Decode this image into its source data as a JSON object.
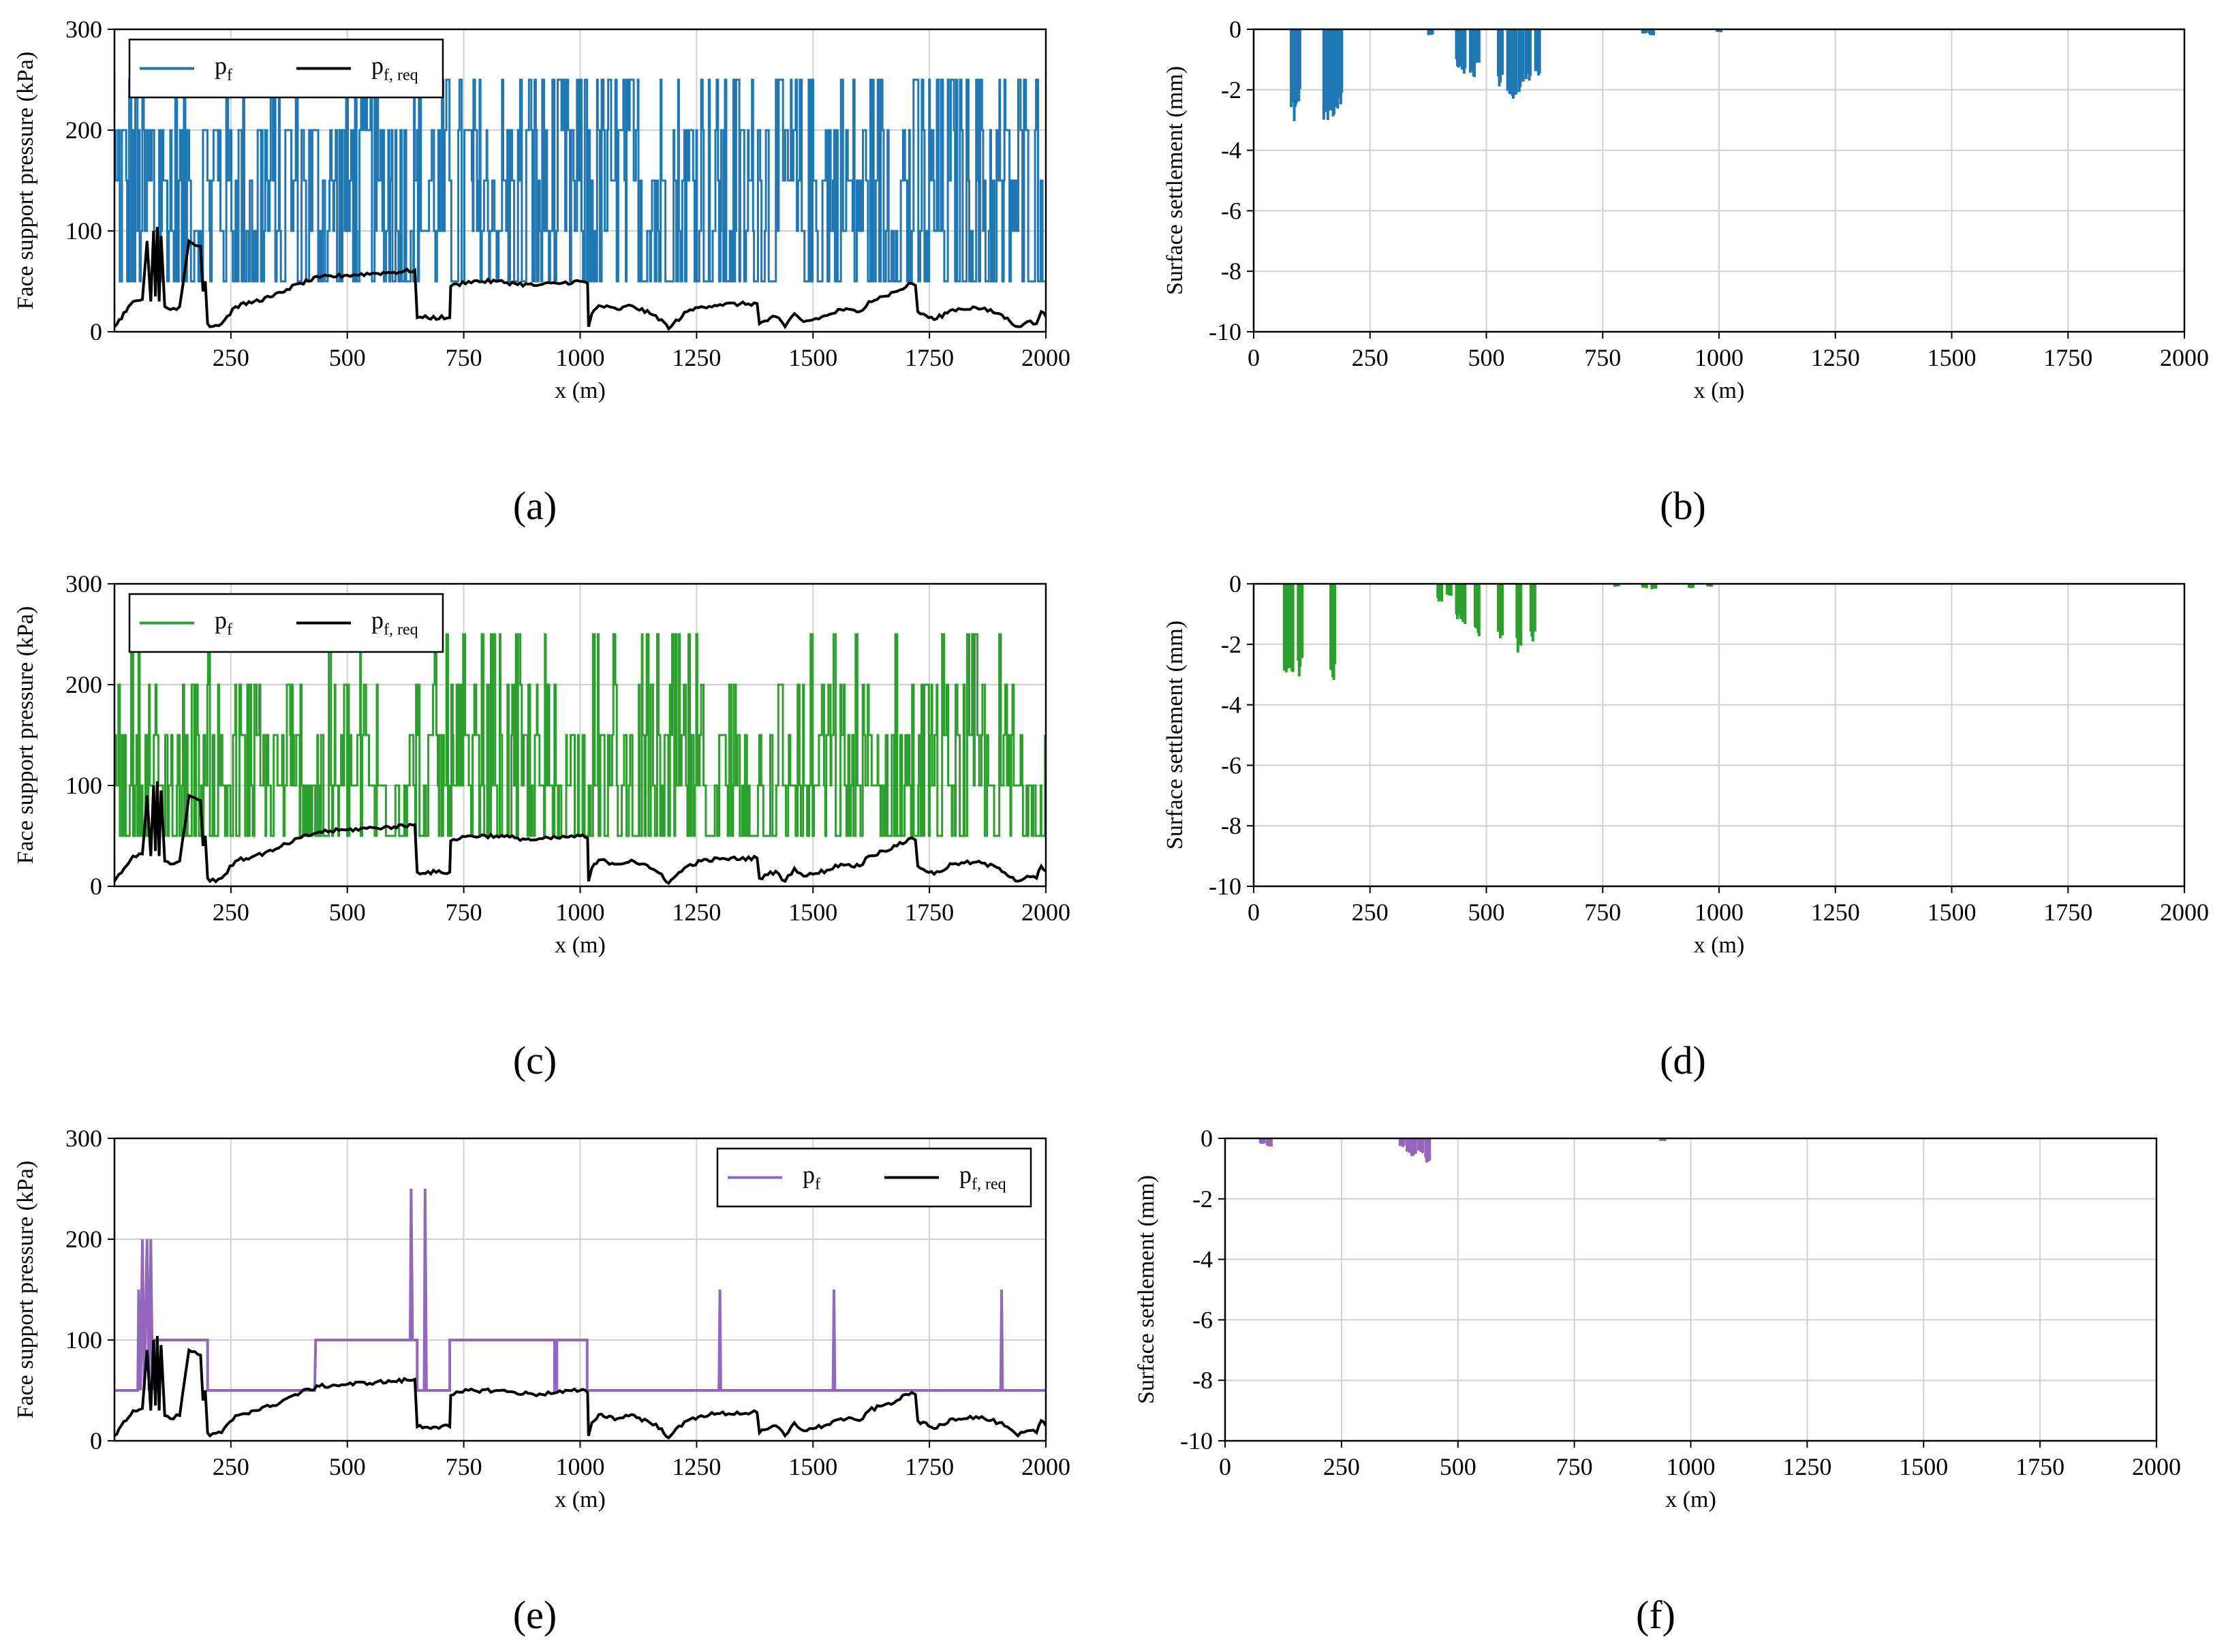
{
  "figure": {
    "colors": {
      "blue": "#1f77b4",
      "green": "#2ca02c",
      "purple": "#9467bd",
      "black": "#000000",
      "grid": "#d0d0d0"
    }
  },
  "chart_data": [
    {
      "id": "a",
      "caption": "(a)",
      "type": "line",
      "xlabel": "x (m)",
      "ylabel": "Face support pressure (kPa)",
      "xlim": [
        0,
        2000
      ],
      "ylim": [
        0,
        300
      ],
      "xticks": [
        250,
        500,
        750,
        1000,
        1250,
        1500,
        1750,
        2000
      ],
      "yticks": [
        0,
        100,
        200,
        300
      ],
      "grid": true,
      "legend_position": "top-left",
      "series": [
        {
          "name": "p_f",
          "legend_main": "p",
          "legend_sub": "f",
          "color": "#1f77b4",
          "pattern": "dense",
          "levels": [
            50,
            100,
            150,
            200,
            250
          ],
          "weights": [
            0.3,
            0.2,
            0.15,
            0.2,
            0.15
          ]
        },
        {
          "name": "p_f,req",
          "legend_main": "p",
          "legend_sub": "f, req",
          "color": "#000000",
          "pattern": "profile"
        }
      ]
    },
    {
      "id": "b",
      "caption": "(b)",
      "type": "bar",
      "xlabel": "x (m)",
      "ylabel": "Surface settlement (mm)",
      "xlim": [
        0,
        2000
      ],
      "ylim": [
        -10,
        0
      ],
      "xticks": [
        0,
        250,
        500,
        750,
        1000,
        1250,
        1500,
        1750,
        2000
      ],
      "yticks": [
        -10,
        -8,
        -6,
        -4,
        -2,
        0
      ],
      "grid": true,
      "color": "#1f77b4",
      "spikes": [
        [
          85,
          -3.1
        ],
        [
          95,
          -2.5
        ],
        [
          155,
          -3.2
        ],
        [
          165,
          -3.3
        ],
        [
          175,
          -3.0
        ],
        [
          185,
          -2.7
        ],
        [
          380,
          -0.2
        ],
        [
          440,
          -1.3
        ],
        [
          450,
          -1.5
        ],
        [
          470,
          -1.6
        ],
        [
          480,
          -1.4
        ],
        [
          530,
          -1.9
        ],
        [
          550,
          -2.2
        ],
        [
          560,
          -2.3
        ],
        [
          575,
          -2.1
        ],
        [
          590,
          -1.7
        ],
        [
          610,
          -1.6
        ],
        [
          840,
          -0.15
        ],
        [
          855,
          -0.2
        ],
        [
          1000,
          -0.1
        ]
      ]
    },
    {
      "id": "c",
      "caption": "(c)",
      "type": "line",
      "xlabel": "x (m)",
      "ylabel": "Face support pressure (kPa)",
      "xlim": [
        0,
        2000
      ],
      "ylim": [
        0,
        300
      ],
      "xticks": [
        250,
        500,
        750,
        1000,
        1250,
        1500,
        1750,
        2000
      ],
      "yticks": [
        0,
        100,
        200,
        300
      ],
      "grid": true,
      "legend_position": "top-left",
      "series": [
        {
          "name": "p_f",
          "legend_main": "p",
          "legend_sub": "f",
          "color": "#2ca02c",
          "pattern": "dense",
          "levels": [
            50,
            100,
            150,
            200,
            250
          ],
          "weights": [
            0.35,
            0.3,
            0.2,
            0.1,
            0.05
          ]
        },
        {
          "name": "p_f,req",
          "legend_main": "p",
          "legend_sub": "f, req",
          "color": "#000000",
          "pattern": "profile"
        }
      ]
    },
    {
      "id": "d",
      "caption": "(d)",
      "type": "bar",
      "xlabel": "x (m)",
      "ylabel": "Surface settlement (mm)",
      "xlim": [
        0,
        2000
      ],
      "ylim": [
        -10,
        0
      ],
      "xticks": [
        0,
        250,
        500,
        750,
        1000,
        1250,
        1500,
        1750,
        2000
      ],
      "yticks": [
        -10,
        -8,
        -6,
        -4,
        -2,
        0
      ],
      "grid": true,
      "color": "#2ca02c",
      "spikes": [
        [
          70,
          -3.0
        ],
        [
          80,
          -3.0
        ],
        [
          100,
          -3.1
        ],
        [
          170,
          -3.2
        ],
        [
          400,
          -0.6
        ],
        [
          420,
          -0.4
        ],
        [
          440,
          -1.2
        ],
        [
          450,
          -1.4
        ],
        [
          480,
          -1.8
        ],
        [
          530,
          -1.9
        ],
        [
          570,
          -2.3
        ],
        [
          600,
          -2.0
        ],
        [
          780,
          -0.1
        ],
        [
          840,
          -0.15
        ],
        [
          860,
          -0.2
        ],
        [
          940,
          -0.15
        ],
        [
          980,
          -0.1
        ]
      ]
    },
    {
      "id": "e",
      "caption": "(e)",
      "type": "line",
      "xlabel": "x (m)",
      "ylabel": "Face support pressure (kPa)",
      "xlim": [
        0,
        2000
      ],
      "ylim": [
        0,
        300
      ],
      "xticks": [
        250,
        500,
        750,
        1000,
        1250,
        1500,
        1750,
        2000
      ],
      "yticks": [
        0,
        100,
        200,
        300
      ],
      "grid": true,
      "legend_position": "top-right",
      "series": [
        {
          "name": "p_f",
          "legend_main": "p",
          "legend_sub": "f",
          "color": "#9467bd",
          "pattern": "steps",
          "points": [
            [
              0,
              50
            ],
            [
              50,
              50
            ],
            [
              52,
              150
            ],
            [
              56,
              50
            ],
            [
              60,
              200
            ],
            [
              64,
              50
            ],
            [
              70,
              200
            ],
            [
              74,
              50
            ],
            [
              78,
              200
            ],
            [
              82,
              50
            ],
            [
              85,
              100
            ],
            [
              200,
              100
            ],
            [
              200,
              50
            ],
            [
              430,
              50
            ],
            [
              432,
              100
            ],
            [
              635,
              100
            ],
            [
              637,
              250
            ],
            [
              640,
              100
            ],
            [
              650,
              100
            ],
            [
              650,
              50
            ],
            [
              665,
              50
            ],
            [
              667,
              250
            ],
            [
              670,
              50
            ],
            [
              720,
              50
            ],
            [
              720,
              100
            ],
            [
              945,
              100
            ],
            [
              945,
              50
            ],
            [
              950,
              50
            ],
            [
              950,
              100
            ],
            [
              1015,
              100
            ],
            [
              1015,
              50
            ],
            [
              1298,
              50
            ],
            [
              1300,
              150
            ],
            [
              1302,
              50
            ],
            [
              1543,
              50
            ],
            [
              1545,
              150
            ],
            [
              1547,
              50
            ],
            [
              1903,
              50
            ],
            [
              1905,
              150
            ],
            [
              1907,
              50
            ],
            [
              2000,
              50
            ]
          ]
        },
        {
          "name": "p_f,req",
          "legend_main": "p",
          "legend_sub": "f, req",
          "color": "#000000",
          "pattern": "profile"
        }
      ]
    },
    {
      "id": "f",
      "caption": "(f)",
      "type": "bar",
      "xlabel": "x (m)",
      "ylabel": "Surface settlement (mm)",
      "xlim": [
        0,
        2000
      ],
      "ylim": [
        -10,
        0
      ],
      "xticks": [
        0,
        250,
        500,
        750,
        1000,
        1250,
        1500,
        1750,
        2000
      ],
      "yticks": [
        -10,
        -8,
        -6,
        -4,
        -2,
        0
      ],
      "grid": true,
      "color": "#9467bd",
      "spikes": [
        [
          80,
          -0.2
        ],
        [
          95,
          -0.3
        ],
        [
          380,
          -0.3
        ],
        [
          395,
          -0.5
        ],
        [
          405,
          -0.6
        ],
        [
          420,
          -0.5
        ],
        [
          435,
          -0.8
        ],
        [
          940,
          -0.1
        ]
      ]
    }
  ],
  "required_pressure": [
    [
      0,
      5
    ],
    [
      10,
      12
    ],
    [
      25,
      20
    ],
    [
      40,
      30
    ],
    [
      60,
      32
    ],
    [
      70,
      90
    ],
    [
      78,
      30
    ],
    [
      84,
      100
    ],
    [
      88,
      35
    ],
    [
      92,
      104
    ],
    [
      96,
      30
    ],
    [
      100,
      95
    ],
    [
      108,
      25
    ],
    [
      120,
      22
    ],
    [
      140,
      25
    ],
    [
      160,
      90
    ],
    [
      185,
      85
    ],
    [
      190,
      40
    ],
    [
      195,
      50
    ],
    [
      200,
      8
    ],
    [
      205,
      5
    ],
    [
      230,
      8
    ],
    [
      260,
      25
    ],
    [
      300,
      30
    ],
    [
      340,
      35
    ],
    [
      370,
      42
    ],
    [
      400,
      48
    ],
    [
      440,
      54
    ],
    [
      500,
      56
    ],
    [
      560,
      58
    ],
    [
      600,
      59
    ],
    [
      645,
      61
    ],
    [
      650,
      14
    ],
    [
      720,
      14
    ],
    [
      722,
      45
    ],
    [
      760,
      50
    ],
    [
      820,
      50
    ],
    [
      860,
      48
    ],
    [
      900,
      46
    ],
    [
      950,
      48
    ],
    [
      1000,
      50
    ],
    [
      1016,
      48
    ],
    [
      1018,
      5
    ],
    [
      1025,
      18
    ],
    [
      1040,
      26
    ],
    [
      1080,
      22
    ],
    [
      1110,
      26
    ],
    [
      1150,
      18
    ],
    [
      1175,
      12
    ],
    [
      1190,
      3
    ],
    [
      1200,
      8
    ],
    [
      1230,
      20
    ],
    [
      1260,
      25
    ],
    [
      1300,
      27
    ],
    [
      1380,
      28
    ],
    [
      1385,
      8
    ],
    [
      1420,
      15
    ],
    [
      1440,
      5
    ],
    [
      1460,
      18
    ],
    [
      1480,
      10
    ],
    [
      1500,
      12
    ],
    [
      1530,
      16
    ],
    [
      1560,
      22
    ],
    [
      1600,
      20
    ],
    [
      1620,
      30
    ],
    [
      1650,
      35
    ],
    [
      1680,
      40
    ],
    [
      1712,
      48
    ],
    [
      1720,
      46
    ],
    [
      1725,
      20
    ],
    [
      1760,
      12
    ],
    [
      1800,
      22
    ],
    [
      1850,
      24
    ],
    [
      1900,
      18
    ],
    [
      1940,
      5
    ],
    [
      1960,
      10
    ],
    [
      1980,
      8
    ],
    [
      1990,
      20
    ],
    [
      2000,
      15
    ]
  ]
}
